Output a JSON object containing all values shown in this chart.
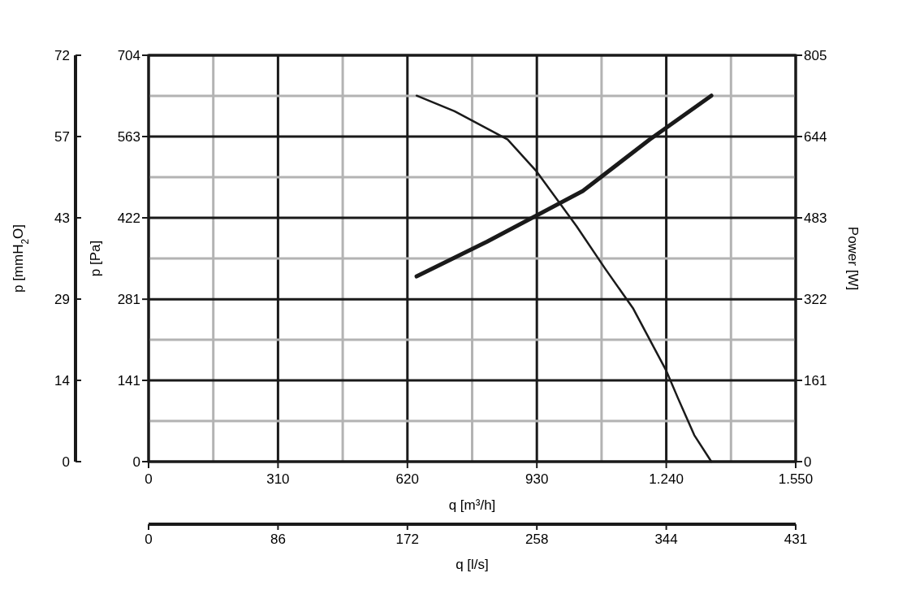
{
  "chart_data": {
    "type": "line",
    "xlabel": "q [m³/h]",
    "ylabel": "p [Pa]",
    "y2label": "Power [W]",
    "y3label": "p [mmH$_{2}$O]",
    "x2label": "q [l/s]",
    "xlim": [
      0,
      1550
    ],
    "xticks": [
      {
        "value": 0,
        "label": "0"
      },
      {
        "value": 155,
        "label": null
      },
      {
        "value": 310,
        "label": "310"
      },
      {
        "value": 465,
        "label": null
      },
      {
        "value": 620,
        "label": "620"
      },
      {
        "value": 775,
        "label": null
      },
      {
        "value": 930,
        "label": "930"
      },
      {
        "value": 1085,
        "label": null
      },
      {
        "value": 1240,
        "label": "1.240"
      },
      {
        "value": 1395,
        "label": null
      },
      {
        "value": 1550,
        "label": "1.550"
      }
    ],
    "ylim": [
      0,
      704
    ],
    "yticks": [
      {
        "value": 0,
        "label": "0"
      },
      {
        "value": 70.4,
        "label": null
      },
      {
        "value": 140.8,
        "label": "141"
      },
      {
        "value": 211.2,
        "label": null
      },
      {
        "value": 281.4,
        "label": "281"
      },
      {
        "value": 352,
        "label": null
      },
      {
        "value": 422.4,
        "label": "422"
      },
      {
        "value": 492.8,
        "label": null
      },
      {
        "value": 563.2,
        "label": "563"
      },
      {
        "value": 633.6,
        "label": null
      },
      {
        "value": 704,
        "label": "704"
      }
    ],
    "y2lim": [
      0,
      805
    ],
    "y2ticks": [
      0,
      161,
      322,
      483,
      644,
      805
    ],
    "y3lim": [
      0,
      71.8
    ],
    "y3ticks": [
      {
        "value": 0,
        "label": "0"
      },
      {
        "value": 14.36,
        "label": "14"
      },
      {
        "value": 28.72,
        "label": "29"
      },
      {
        "value": 43.08,
        "label": "43"
      },
      {
        "value": 57.44,
        "label": "57"
      },
      {
        "value": 71.8,
        "label": "72"
      }
    ],
    "x2lim": [
      0,
      430.6
    ],
    "x2ticks": [
      {
        "value": 0,
        "label": "0"
      },
      {
        "value": 86.12,
        "label": "86"
      },
      {
        "value": 172.24,
        "label": "172"
      },
      {
        "value": 258.36,
        "label": "258"
      },
      {
        "value": 344.48,
        "label": "344"
      },
      {
        "value": 430.6,
        "label": "431"
      }
    ],
    "grid": true,
    "series": [
      {
        "color": "#1a1a1a",
        "x": [
          642,
          733,
          860,
          928,
          1025,
          1093,
          1161,
          1239,
          1268,
          1307,
          1348
        ],
        "values": [
          634,
          607,
          558,
          504,
          408,
          335,
          265,
          159,
          110,
          46,
          0
        ]
      },
      {
        "color": "#1a1a1a",
        "axis": "y2",
        "x": [
          642,
          811,
          1040,
          1200,
          1348
        ],
        "values": [
          367,
          436,
          536,
          638,
          725
        ]
      }
    ]
  }
}
